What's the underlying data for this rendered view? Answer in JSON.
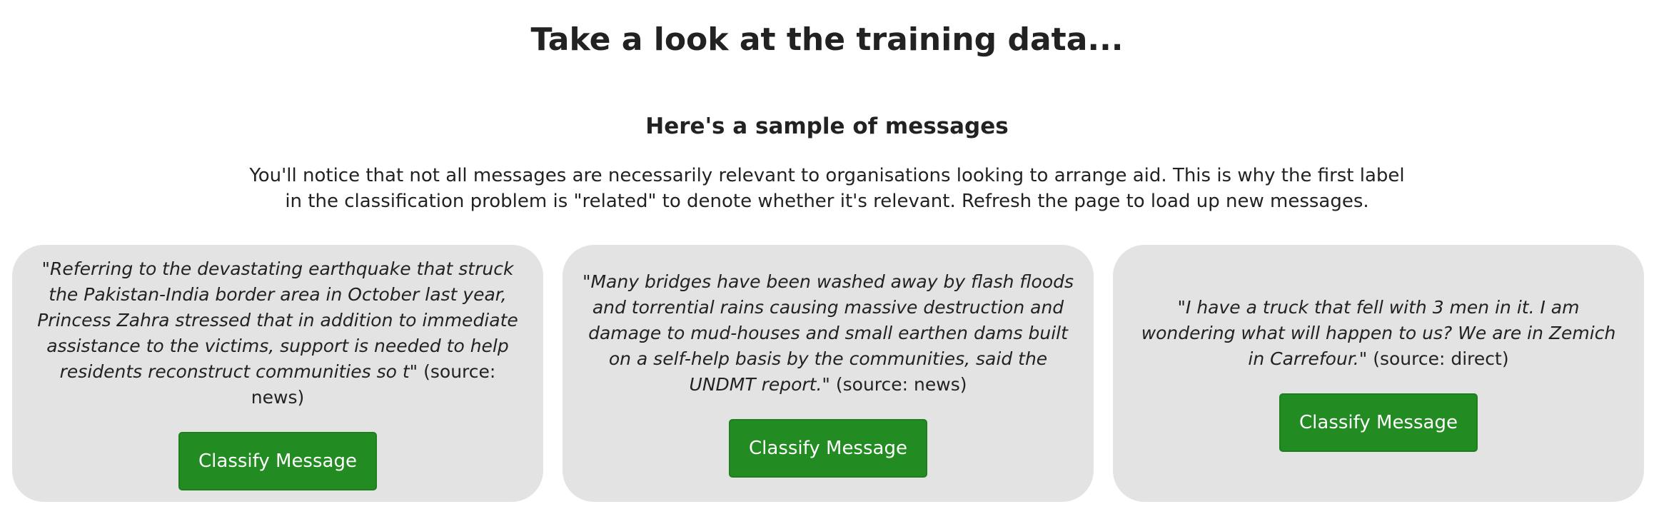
{
  "header": {
    "title": "Take a look at the training data..."
  },
  "section": {
    "title": "Here's a sample of messages",
    "intro": "You'll notice that not all messages are necessarily relevant to organisations looking to arrange aid. This is why the first label in the classification problem is \"related\" to denote whether it's relevant. Refresh the page to load up new messages."
  },
  "messages": [
    {
      "text": "\"Referring to the devastating earthquake that struck the Pakistan-India border area in October last year, Princess Zahra stressed that in addition to immediate assistance to the victims, support is needed to help residents reconstruct communities so t\"",
      "source": "(source: news)",
      "button_label": "Classify Message"
    },
    {
      "text": "\"Many bridges have been washed away by flash floods and torrential rains causing massive destruction and damage to mud-houses and small earthen dams built on a self-help basis by the communities, said the UNDMT report.\"",
      "source": "(source: news)",
      "button_label": "Classify Message"
    },
    {
      "text": "\"I have a truck that fell with 3 men in it. I am wondering what will happen to us? We are in Zemich in Carrefour.\"",
      "source": "(source: direct)",
      "button_label": "Classify Message"
    }
  ],
  "colors": {
    "card_background": "#e3e3e3",
    "button_background": "#228b22",
    "button_text": "#ffffff",
    "text": "#222222"
  }
}
